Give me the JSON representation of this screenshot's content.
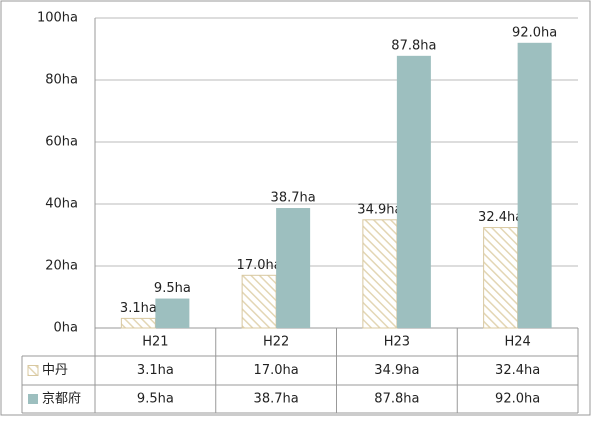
{
  "chart_data": {
    "type": "bar",
    "categories": [
      "H21",
      "H22",
      "H23",
      "H24"
    ],
    "series": [
      {
        "name": "中丹",
        "color": "#e3d6b4",
        "pattern": "hatch",
        "values": [
          3.1,
          17.0,
          34.9,
          32.4
        ],
        "value_labels": [
          "3.1ha",
          "17.0ha",
          "34.9ha",
          "32.4ha"
        ]
      },
      {
        "name": "京都府",
        "color": "#9dbfbf",
        "values": [
          9.5,
          38.7,
          87.8,
          92.0
        ],
        "value_labels": [
          "9.5ha",
          "38.7ha",
          "87.8ha",
          "92.0ha"
        ]
      }
    ],
    "ylim": [
      0,
      100
    ],
    "yticks": [
      {
        "value": 0,
        "label": "0ha"
      },
      {
        "value": 20,
        "label": "20ha"
      },
      {
        "value": 40,
        "label": "40ha"
      },
      {
        "value": 60,
        "label": "60ha"
      },
      {
        "value": 80,
        "label": "80ha"
      },
      {
        "value": 100,
        "label": "100ha"
      }
    ],
    "grid": true,
    "data_table": true
  }
}
